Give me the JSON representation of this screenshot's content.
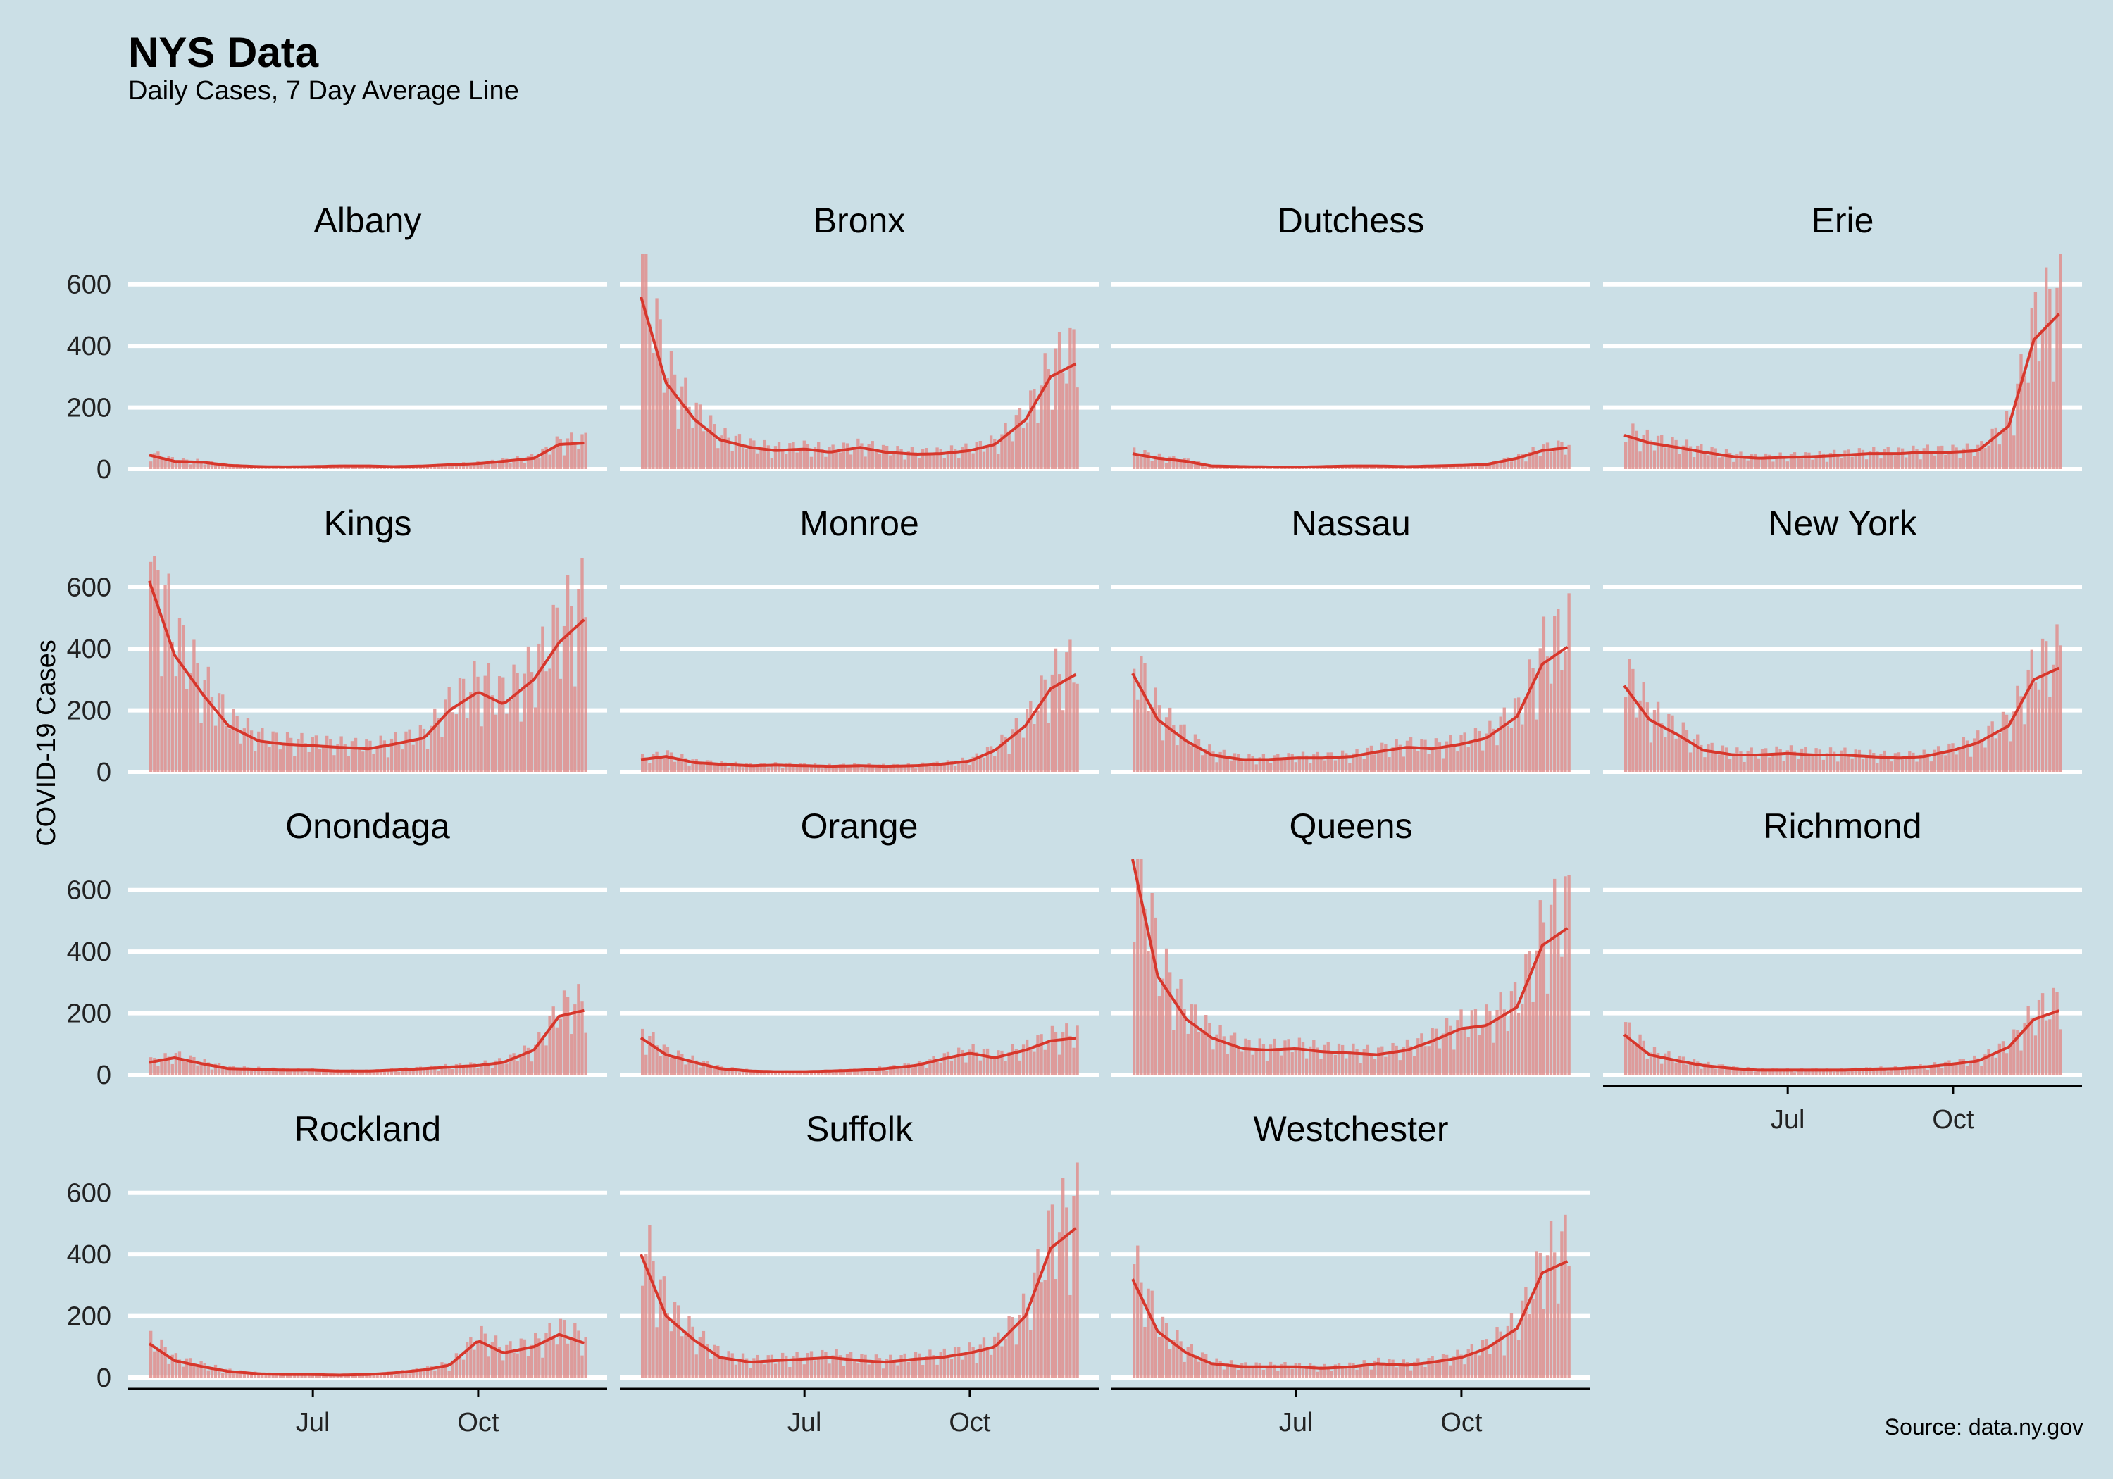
{
  "title": "NYS Data",
  "subtitle": "Daily Cases, 7 Day Average Line",
  "source": "Source: data.ny.gov",
  "chart_data": {
    "type": "bar",
    "facet_layout": "4 columns, wrapped",
    "ylabel": "COVID-19 Cases",
    "xlabel": "",
    "ylim": [
      0,
      700
    ],
    "y_ticks": [
      0,
      200,
      400,
      600
    ],
    "x_range": [
      "2020-04-01",
      "2020-11-30"
    ],
    "x_ticks": [
      {
        "date": "2020-07-01",
        "label": "Jul"
      },
      {
        "date": "2020-10-01",
        "label": "Oct"
      }
    ],
    "grid": "horizontal major",
    "colors": {
      "bars": "#e08f8d",
      "line": "#d7372c",
      "background": "#cbdfe6",
      "grid": "#ffffff"
    },
    "series_note": "Bars are daily cases; line is the 7 day average.",
    "dates": [
      "2020-04-01",
      "2020-04-15",
      "2020-05-01",
      "2020-05-15",
      "2020-06-01",
      "2020-06-15",
      "2020-07-01",
      "2020-07-15",
      "2020-08-01",
      "2020-08-15",
      "2020-09-01",
      "2020-09-15",
      "2020-10-01",
      "2020-10-15",
      "2020-11-01",
      "2020-11-15",
      "2020-11-30"
    ],
    "facets": [
      {
        "name": "Albany",
        "avg": [
          45,
          25,
          22,
          12,
          8,
          7,
          8,
          10,
          10,
          8,
          10,
          14,
          18,
          25,
          35,
          80,
          85
        ]
      },
      {
        "name": "Bronx",
        "avg": [
          560,
          280,
          160,
          95,
          70,
          60,
          65,
          55,
          70,
          55,
          48,
          50,
          60,
          80,
          160,
          300,
          345
        ]
      },
      {
        "name": "Dutchess",
        "avg": [
          50,
          35,
          25,
          10,
          8,
          7,
          6,
          8,
          10,
          10,
          8,
          10,
          12,
          15,
          35,
          60,
          70
        ]
      },
      {
        "name": "Erie",
        "avg": [
          110,
          85,
          70,
          55,
          40,
          35,
          38,
          40,
          45,
          50,
          50,
          55,
          55,
          60,
          140,
          420,
          510
        ]
      },
      {
        "name": "Kings",
        "avg": [
          620,
          380,
          250,
          150,
          100,
          90,
          85,
          80,
          75,
          90,
          110,
          200,
          260,
          220,
          300,
          420,
          500
        ]
      },
      {
        "name": "Monroe",
        "avg": [
          40,
          50,
          30,
          25,
          20,
          22,
          20,
          18,
          20,
          18,
          20,
          25,
          35,
          70,
          150,
          270,
          320
        ]
      },
      {
        "name": "Nassau",
        "avg": [
          320,
          170,
          100,
          55,
          40,
          40,
          45,
          45,
          50,
          65,
          80,
          75,
          90,
          110,
          180,
          350,
          410
        ]
      },
      {
        "name": "New York",
        "avg": [
          280,
          170,
          120,
          70,
          55,
          55,
          60,
          55,
          55,
          50,
          45,
          50,
          70,
          95,
          150,
          300,
          340
        ]
      },
      {
        "name": "Onondaga",
        "avg": [
          40,
          55,
          35,
          20,
          18,
          15,
          15,
          12,
          12,
          15,
          20,
          25,
          30,
          40,
          80,
          190,
          210
        ]
      },
      {
        "name": "Orange",
        "avg": [
          120,
          65,
          40,
          20,
          12,
          10,
          10,
          12,
          15,
          20,
          30,
          50,
          70,
          55,
          80,
          110,
          120
        ]
      },
      {
        "name": "Queens",
        "avg": [
          700,
          320,
          180,
          120,
          85,
          80,
          85,
          75,
          70,
          65,
          80,
          110,
          150,
          160,
          220,
          420,
          480
        ]
      },
      {
        "name": "Richmond",
        "avg": [
          130,
          65,
          45,
          30,
          20,
          15,
          15,
          15,
          15,
          18,
          20,
          25,
          35,
          45,
          90,
          180,
          210
        ]
      },
      {
        "name": "Rockland",
        "avg": [
          110,
          55,
          35,
          20,
          12,
          10,
          10,
          8,
          10,
          15,
          25,
          40,
          120,
          80,
          100,
          140,
          110
        ]
      },
      {
        "name": "Suffolk",
        "avg": [
          400,
          200,
          120,
          65,
          50,
          55,
          60,
          65,
          55,
          50,
          60,
          65,
          80,
          100,
          200,
          420,
          490
        ]
      },
      {
        "name": "Westchester",
        "avg": [
          320,
          150,
          80,
          45,
          35,
          35,
          35,
          30,
          35,
          45,
          40,
          50,
          65,
          95,
          160,
          340,
          380
        ]
      }
    ]
  }
}
